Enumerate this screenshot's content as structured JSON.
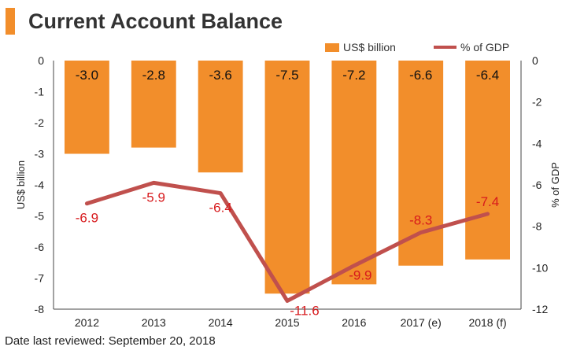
{
  "title": "Current Account Balance",
  "footer": "Date last reviewed: September 20, 2018",
  "colors": {
    "accent": "#f28e2b",
    "bar": "#f28e2b",
    "line": "#c0504d",
    "line_label": "#d7191c"
  },
  "chart_data": {
    "type": "bar+line",
    "categories": [
      "2012",
      "2013",
      "2014",
      "2015",
      "2016",
      "2017 (e)",
      "2018 (f)"
    ],
    "series": [
      {
        "name": "US$ billion",
        "type": "bar",
        "axis": "left",
        "values": [
          -3.0,
          -2.8,
          -3.6,
          -7.5,
          -7.2,
          -6.6,
          -6.4
        ],
        "labels": [
          "-3.0",
          "-2.8",
          "-3.6",
          "-7.5",
          "-7.2",
          "-6.6",
          "-6.4"
        ]
      },
      {
        "name": "% of GDP",
        "type": "line",
        "axis": "right",
        "values": [
          -6.9,
          -5.9,
          -6.4,
          -11.6,
          -9.9,
          -8.3,
          -7.4
        ],
        "labels": [
          "-6.9",
          "-5.9",
          "-6.4",
          "-11.6",
          "-9.9",
          "-8.3",
          "-7.4"
        ]
      }
    ],
    "ylabel_left": "US$ billion",
    "ylabel_right": "% of GDP",
    "ylim_left": [
      -8,
      0
    ],
    "ylim_right": [
      -12,
      0
    ],
    "yticks_left": [
      "0",
      "-1",
      "-2",
      "-3",
      "-4",
      "-5",
      "-6",
      "-7",
      "-8"
    ],
    "yticks_right": [
      "0",
      "-2",
      "-4",
      "-6",
      "-8",
      "-10",
      "-12"
    ],
    "legend_position": "top-right",
    "grid": false
  }
}
